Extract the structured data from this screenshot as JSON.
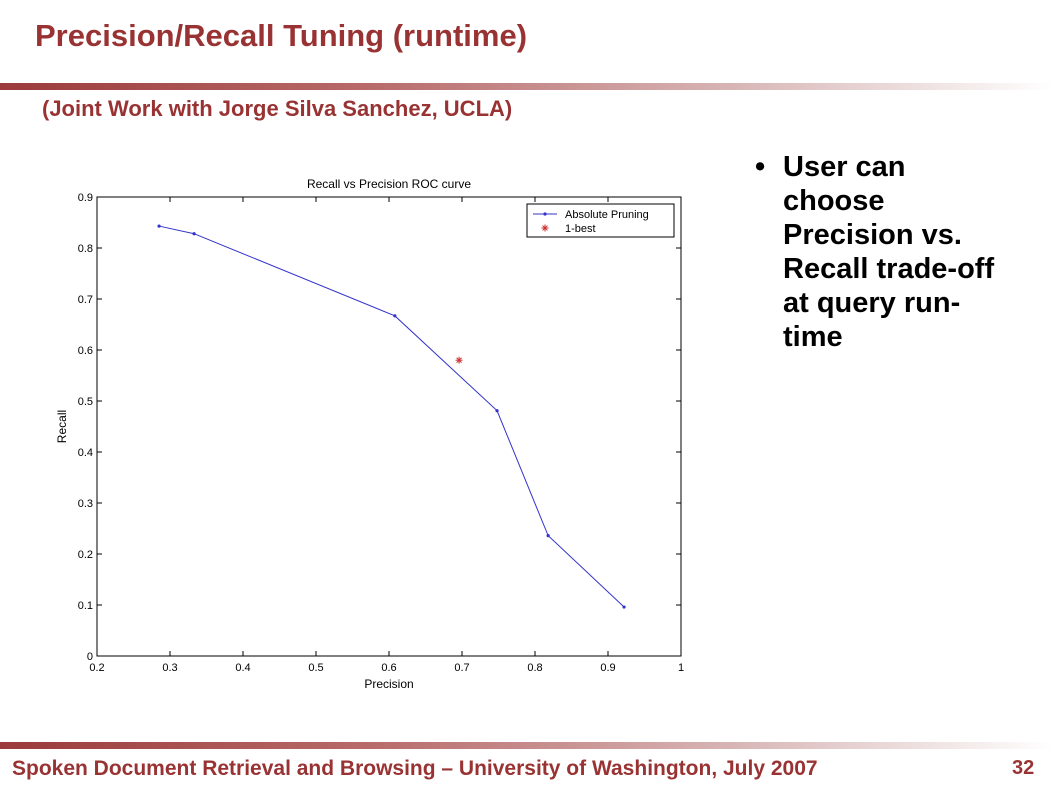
{
  "slide": {
    "title": "Precision/Recall  Tuning  (runtime)",
    "subtitle": "(Joint Work with Jorge Silva Sanchez, UCLA)",
    "bullets": [
      "User can choose Precision vs. Recall trade-off at query run-time"
    ],
    "footer": "Spoken Document Retrieval and Browsing – University of Washington, July 2007",
    "page_number": "32"
  },
  "colors": {
    "accent": "#993333",
    "series_line": "#3333cc",
    "series_marker": "#cc3333"
  },
  "chart_data": {
    "type": "line",
    "title": "Recall vs Precision ROC curve",
    "xlabel": "Precision",
    "ylabel": "Recall",
    "xlim": [
      0.2,
      1.0
    ],
    "ylim": [
      0,
      0.9
    ],
    "xticks": [
      "0.2",
      "0.3",
      "0.4",
      "0.5",
      "0.6",
      "0.7",
      "0.8",
      "0.9",
      "1"
    ],
    "yticks": [
      "0",
      "0.1",
      "0.2",
      "0.3",
      "0.4",
      "0.5",
      "0.6",
      "0.7",
      "0.8",
      "0.9"
    ],
    "grid": false,
    "legend_position": "top-right",
    "series": [
      {
        "name": "Absolute Pruning",
        "style": "line-with-dots",
        "x": [
          0.285,
          0.333,
          0.608,
          0.748,
          0.818,
          0.922
        ],
        "y": [
          0.843,
          0.828,
          0.667,
          0.481,
          0.236,
          0.096
        ]
      },
      {
        "name": "1-best",
        "style": "asterisk",
        "x": [
          0.696
        ],
        "y": [
          0.58
        ]
      }
    ]
  }
}
